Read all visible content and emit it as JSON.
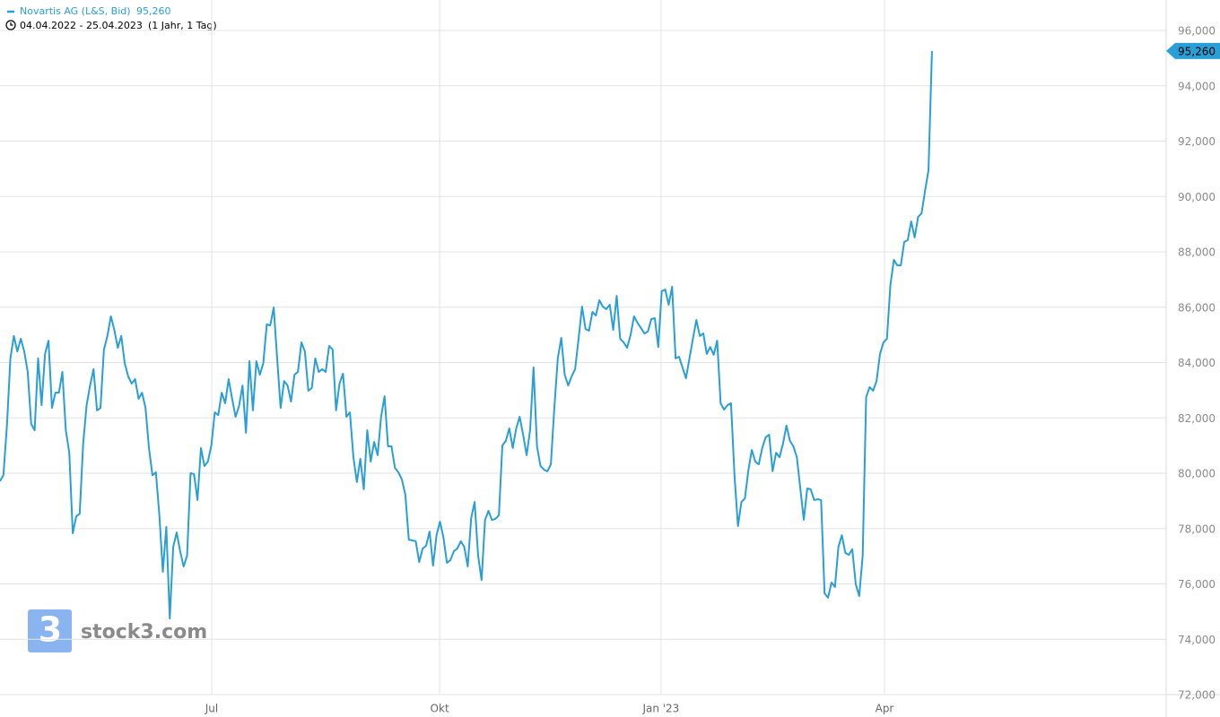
{
  "chart_data": {
    "type": "line",
    "subtitle": "04.04.2022 - 25.04.2023",
    "period": "(1 Jahr, 1 Tag)",
    "watermark": "stock3.com",
    "series": [
      {
        "name": "Novartis AG (L&S, Bid)",
        "color": "#2a9fd6",
        "values": [
          79710,
          79940,
          81720,
          84150,
          84960,
          84400,
          84860,
          84400,
          83660,
          81780,
          81550,
          84150,
          82460,
          84310,
          84790,
          82360,
          82910,
          82910,
          83660,
          81550,
          80740,
          77830,
          78440,
          78540,
          81060,
          82460,
          83170,
          83760,
          82270,
          82360,
          84470,
          84960,
          85670,
          85180,
          84530,
          84960,
          83980,
          83500,
          83240,
          83400,
          82690,
          82910,
          82360,
          80910,
          79930,
          80030,
          78480,
          76440,
          78060,
          74750,
          77340,
          77860,
          77180,
          76630,
          77020,
          80000,
          79970,
          79030,
          80910,
          80260,
          80420,
          81000,
          82200,
          82100,
          82910,
          82530,
          83400,
          82690,
          82040,
          82430,
          83170,
          81460,
          84050,
          82270,
          84050,
          83560,
          83980,
          85380,
          85340,
          85990,
          84150,
          82360,
          83330,
          83170,
          82590,
          83560,
          83660,
          84730,
          84400,
          82980,
          83080,
          84150,
          83660,
          83760,
          83660,
          84600,
          84470,
          82270,
          83240,
          83600,
          82040,
          82200,
          80580,
          79680,
          80520,
          79420,
          81550,
          80420,
          81130,
          80650,
          82040,
          82780,
          80970,
          80970,
          80190,
          80030,
          79770,
          79220,
          77600,
          77570,
          77540,
          76790,
          77280,
          77380,
          77890,
          76660,
          77760,
          78250,
          77670,
          76760,
          76860,
          77180,
          77280,
          77540,
          77340,
          76630,
          78380,
          78960,
          77020,
          76140,
          78310,
          78640,
          78310,
          78350,
          78480,
          81000,
          81170,
          81620,
          80910,
          81620,
          82040,
          81390,
          80650,
          81550,
          83820,
          80970,
          80260,
          80130,
          80070,
          80320,
          82360,
          84150,
          84890,
          83560,
          83170,
          83500,
          83760,
          84860,
          86020,
          85210,
          85150,
          85830,
          85700,
          86250,
          86020,
          85930,
          86090,
          85180,
          86410,
          84860,
          84730,
          84530,
          84990,
          85670,
          85440,
          85250,
          85050,
          85120,
          85570,
          85600,
          84560,
          86580,
          86640,
          86090,
          86740,
          84150,
          84210,
          83820,
          83430,
          84150,
          84860,
          85540,
          84960,
          85050,
          84310,
          84560,
          84280,
          84790,
          82530,
          82300,
          82460,
          82530,
          79930,
          78090,
          78960,
          79090,
          80100,
          80840,
          80420,
          80320,
          80910,
          81300,
          81390,
          80070,
          80740,
          80580,
          81070,
          81720,
          81170,
          80970,
          80580,
          79450,
          78320,
          79450,
          79420,
          79030,
          79060,
          79030,
          75660,
          75500,
          76050,
          75890,
          77340,
          77760,
          77120,
          77050,
          77250,
          75990,
          75560,
          77020,
          82750,
          83110,
          82980,
          83330,
          84310,
          84730,
          84860,
          86800,
          87710,
          87510,
          87510,
          88360,
          88420,
          89100,
          88520,
          89260,
          89390,
          90200,
          90950,
          95260
        ],
        "value_labels": [
          null,
          null,
          null,
          null,
          null,
          null,
          null,
          null,
          null,
          null,
          null,
          null,
          null,
          null,
          null,
          null,
          null,
          null,
          null,
          null,
          null,
          null,
          null,
          null,
          null,
          null,
          null,
          null,
          null,
          null,
          null,
          null,
          null,
          null,
          null,
          null,
          null,
          null,
          null,
          null,
          null,
          null,
          null,
          null,
          null,
          null,
          null,
          null,
          null,
          null,
          null,
          null,
          null,
          null,
          null,
          null,
          null,
          null,
          null,
          null,
          null,
          null,
          null,
          null,
          null,
          null,
          null,
          null,
          null,
          null,
          null,
          null,
          null,
          null,
          null,
          null,
          null,
          null,
          null,
          null,
          null,
          null,
          null,
          null,
          null,
          null,
          null,
          null,
          null,
          null,
          null,
          null,
          null,
          null,
          null,
          null,
          null,
          null,
          null,
          null,
          null,
          null,
          null,
          null,
          null,
          null,
          null,
          null,
          null,
          null,
          null,
          null,
          null,
          null,
          null,
          null,
          null,
          null,
          null,
          null,
          null,
          null,
          null,
          null,
          null,
          null,
          null,
          null,
          null,
          null,
          null,
          null,
          null,
          null,
          null,
          null,
          null,
          null,
          null,
          null,
          null,
          null,
          null,
          null,
          null,
          null,
          null,
          null,
          null,
          null,
          null,
          null,
          null,
          null,
          null,
          null,
          null,
          null,
          null,
          null,
          null,
          null,
          null,
          null,
          null,
          null,
          null,
          null,
          null,
          null,
          null,
          null,
          null,
          null,
          null,
          null,
          null,
          null,
          null,
          null,
          null,
          null,
          null,
          null,
          null,
          null,
          null,
          null,
          null,
          null,
          null,
          null,
          null,
          null,
          null,
          null,
          null,
          null,
          null,
          null,
          null,
          null,
          null,
          null,
          null,
          null,
          null,
          null,
          null,
          null,
          null,
          null,
          null,
          null,
          null,
          null,
          null,
          null,
          null,
          null,
          null,
          null,
          null,
          null,
          null,
          null,
          null,
          null,
          null,
          null,
          null,
          null,
          null,
          null,
          null,
          null,
          null,
          null,
          null,
          null,
          null,
          null,
          null,
          null,
          null,
          null,
          null,
          null,
          null,
          null,
          null,
          null,
          null,
          null,
          null,
          null,
          null,
          null,
          null,
          null,
          null,
          null,
          null,
          null,
          null,
          null,
          null,
          null,
          null,
          "95,260"
        ]
      }
    ],
    "xlim": [
      0,
      336.6
    ],
    "xticks": [
      {
        "value": 61.1,
        "label": "Jul"
      },
      {
        "value": 126.9,
        "label": "Okt"
      },
      {
        "value": 190.8,
        "label": "Jan '23"
      },
      {
        "value": 255.3,
        "label": "Apr"
      }
    ],
    "ylim": [
      72000,
      96000
    ],
    "yticks": [
      {
        "value": 72000,
        "label": "72,000"
      },
      {
        "value": 74000,
        "label": "74,000"
      },
      {
        "value": 76000,
        "label": "76,000"
      },
      {
        "value": 78000,
        "label": "78,000"
      },
      {
        "value": 80000,
        "label": "80,000"
      },
      {
        "value": 82000,
        "label": "82,000"
      },
      {
        "value": 84000,
        "label": "84,000"
      },
      {
        "value": 86000,
        "label": "86,000"
      },
      {
        "value": 88000,
        "label": "88,000"
      },
      {
        "value": 90000,
        "label": "90,000"
      },
      {
        "value": 92000,
        "label": "92,000"
      },
      {
        "value": 94000,
        "label": "94,000"
      },
      {
        "value": 96000,
        "label": "96,000"
      }
    ],
    "grid": true
  }
}
